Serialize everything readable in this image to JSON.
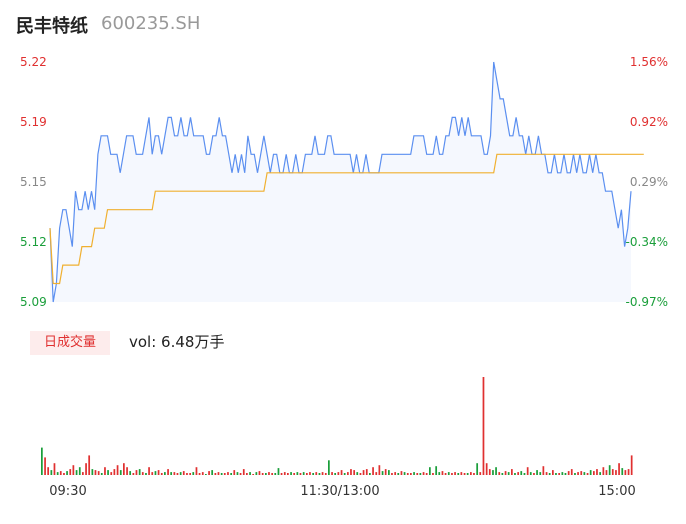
{
  "header": {
    "name": "民丰特纸",
    "code": "600235.SH"
  },
  "volume_panel": {
    "tab_label": "日成交量",
    "volume_text": "vol: 6.48万手"
  },
  "colors": {
    "up": "#e03030",
    "down": "#1a9e3a",
    "neutral": "#888888",
    "price_line": "#5b8ff0",
    "avg_line": "#f0b030",
    "area_fill": "#f5f8fe"
  },
  "chart_data": {
    "type": "line",
    "title": "",
    "x_ticks": [
      "09:30",
      "11:30/13:00",
      "15:00"
    ],
    "y_ticks_price": [
      "5.22",
      "5.19",
      "5.15",
      "5.12",
      "5.09"
    ],
    "y_ticks_pct": [
      "1.56%",
      "0.92%",
      "0.29%",
      "-0.34%",
      "-0.97%"
    ],
    "y_tick_colors": [
      "up",
      "up",
      "neutral",
      "down",
      "down"
    ],
    "ylim": [
      5.09,
      5.22
    ],
    "prev_close": 5.14,
    "series": [
      {
        "values": [
          5.13,
          5.09,
          5.1,
          5.13,
          5.14,
          5.14,
          5.13,
          5.12,
          5.15,
          5.14,
          5.14,
          5.15,
          5.14,
          5.15,
          5.14,
          5.17,
          5.18,
          5.18,
          5.18,
          5.17,
          5.17,
          5.17,
          5.16,
          5.17,
          5.18,
          5.18,
          5.18,
          5.17,
          5.17,
          5.17,
          5.18,
          5.19,
          5.17,
          5.18,
          5.18,
          5.17,
          5.18,
          5.19,
          5.19,
          5.18,
          5.18,
          5.19,
          5.18,
          5.18,
          5.19,
          5.18,
          5.18,
          5.18,
          5.18,
          5.17,
          5.17,
          5.18,
          5.18,
          5.19,
          5.18,
          5.18,
          5.17,
          5.16,
          5.17,
          5.16,
          5.17,
          5.16,
          5.18,
          5.17,
          5.17,
          5.16,
          5.17,
          5.18,
          5.17,
          5.16,
          5.17,
          5.17,
          5.16,
          5.16,
          5.17,
          5.16,
          5.16,
          5.17,
          5.16,
          5.16,
          5.17,
          5.17,
          5.17,
          5.18,
          5.17,
          5.17,
          5.17,
          5.18,
          5.18,
          5.17,
          5.17,
          5.17,
          5.17,
          5.17,
          5.17,
          5.16,
          5.17,
          5.16,
          5.16,
          5.17,
          5.16,
          5.16,
          5.16,
          5.16,
          5.17,
          5.17,
          5.17,
          5.17,
          5.17,
          5.17,
          5.17,
          5.17,
          5.17,
          5.17,
          5.18,
          5.18,
          5.18,
          5.18,
          5.17,
          5.17,
          5.17,
          5.18,
          5.17,
          5.17,
          5.18,
          5.18,
          5.19,
          5.19,
          5.18,
          5.19,
          5.18,
          5.19,
          5.18,
          5.18,
          5.18,
          5.18,
          5.17,
          5.17,
          5.18,
          5.22,
          5.21,
          5.2,
          5.2,
          5.19,
          5.18,
          5.18,
          5.19,
          5.18,
          5.18,
          5.17,
          5.18,
          5.17,
          5.17,
          5.18,
          5.17,
          5.17,
          5.16,
          5.16,
          5.17,
          5.16,
          5.16,
          5.17,
          5.16,
          5.16,
          5.17,
          5.16,
          5.17,
          5.16,
          5.16,
          5.17,
          5.16,
          5.17,
          5.16,
          5.16,
          5.15,
          5.15,
          5.15,
          5.14,
          5.13,
          5.14,
          5.12,
          5.13,
          5.15
        ],
        "color_key": "price_line"
      },
      {
        "values": [
          5.13,
          5.1,
          5.1,
          5.1,
          5.11,
          5.11,
          5.11,
          5.11,
          5.11,
          5.11,
          5.12,
          5.12,
          5.12,
          5.12,
          5.13,
          5.13,
          5.13,
          5.13,
          5.14,
          5.14,
          5.14,
          5.14,
          5.14,
          5.14,
          5.14,
          5.14,
          5.14,
          5.14,
          5.14,
          5.14,
          5.14,
          5.14,
          5.14,
          5.15,
          5.15,
          5.15,
          5.15,
          5.15,
          5.15,
          5.15,
          5.15,
          5.15,
          5.15,
          5.15,
          5.15,
          5.15,
          5.15,
          5.15,
          5.15,
          5.15,
          5.15,
          5.15,
          5.15,
          5.15,
          5.15,
          5.15,
          5.15,
          5.15,
          5.15,
          5.15,
          5.15,
          5.15,
          5.15,
          5.15,
          5.15,
          5.15,
          5.15,
          5.15,
          5.16,
          5.16,
          5.16,
          5.16,
          5.16,
          5.16,
          5.16,
          5.16,
          5.16,
          5.16,
          5.16,
          5.16,
          5.16,
          5.16,
          5.16,
          5.16,
          5.16,
          5.16,
          5.16,
          5.16,
          5.16,
          5.16,
          5.16,
          5.16,
          5.16,
          5.16,
          5.16,
          5.16,
          5.16,
          5.16,
          5.16,
          5.16,
          5.16,
          5.16,
          5.16,
          5.16,
          5.16,
          5.16,
          5.16,
          5.16,
          5.16,
          5.16,
          5.16,
          5.16,
          5.16,
          5.16,
          5.16,
          5.16,
          5.16,
          5.16,
          5.16,
          5.16,
          5.16,
          5.16,
          5.16,
          5.16,
          5.16,
          5.16,
          5.16,
          5.16,
          5.16,
          5.16,
          5.16,
          5.16,
          5.16,
          5.16,
          5.16,
          5.16,
          5.16,
          5.16,
          5.16,
          5.16,
          5.17,
          5.17,
          5.17,
          5.17,
          5.17,
          5.17,
          5.17,
          5.17,
          5.17,
          5.17,
          5.17,
          5.17,
          5.17,
          5.17,
          5.17,
          5.17,
          5.17,
          5.17,
          5.17,
          5.17,
          5.17,
          5.17,
          5.17,
          5.17,
          5.17,
          5.17,
          5.17,
          5.17,
          5.17,
          5.17,
          5.17,
          5.17,
          5.17,
          5.17,
          5.17,
          5.17,
          5.17,
          5.17,
          5.17,
          5.17,
          5.17,
          5.17,
          5.17,
          5.17,
          5.17,
          5.17,
          5.17
        ],
        "color_key": "avg_line"
      }
    ],
    "volume": {
      "values": [
        0.28,
        0.18,
        0.08,
        0.05,
        0.12,
        0.03,
        0.04,
        0.02,
        0.04,
        0.06,
        0.1,
        0.05,
        0.08,
        0.03,
        0.12,
        0.2,
        0.06,
        0.05,
        0.04,
        0.02,
        0.08,
        0.05,
        0.03,
        0.06,
        0.1,
        0.05,
        0.12,
        0.08,
        0.04,
        0.02,
        0.05,
        0.06,
        0.03,
        0.02,
        0.08,
        0.03,
        0.04,
        0.05,
        0.02,
        0.03,
        0.06,
        0.03,
        0.03,
        0.02,
        0.03,
        0.04,
        0.02,
        0.02,
        0.03,
        0.08,
        0.02,
        0.03,
        0.01,
        0.04,
        0.05,
        0.02,
        0.03,
        0.02,
        0.02,
        0.03,
        0.02,
        0.05,
        0.03,
        0.02,
        0.06,
        0.02,
        0.03,
        0.01,
        0.03,
        0.04,
        0.02,
        0.02,
        0.03,
        0.02,
        0.02,
        0.07,
        0.02,
        0.03,
        0.02,
        0.03,
        0.02,
        0.03,
        0.02,
        0.03,
        0.02,
        0.03,
        0.02,
        0.03,
        0.02,
        0.03,
        0.02,
        0.15,
        0.03,
        0.02,
        0.03,
        0.05,
        0.02,
        0.03,
        0.06,
        0.05,
        0.03,
        0.02,
        0.05,
        0.06,
        0.02,
        0.08,
        0.03,
        0.1,
        0.04,
        0.06,
        0.05,
        0.02,
        0.03,
        0.02,
        0.04,
        0.03,
        0.02,
        0.02,
        0.03,
        0.02,
        0.02,
        0.03,
        0.02,
        0.08,
        0.02,
        0.09,
        0.03,
        0.04,
        0.02,
        0.03,
        0.02,
        0.03,
        0.02,
        0.03,
        0.02,
        0.02,
        0.03,
        0.02,
        0.12,
        0.03,
        1.0,
        0.12,
        0.06,
        0.05,
        0.08,
        0.03,
        0.02,
        0.04,
        0.03,
        0.06,
        0.02,
        0.03,
        0.04,
        0.02,
        0.08,
        0.03,
        0.02,
        0.05,
        0.03,
        0.09,
        0.03,
        0.02,
        0.05,
        0.02,
        0.02,
        0.03,
        0.02,
        0.04,
        0.06,
        0.02,
        0.03,
        0.04,
        0.03,
        0.02,
        0.05,
        0.04,
        0.06,
        0.03,
        0.08,
        0.05,
        0.1,
        0.06,
        0.05,
        0.12,
        0.07,
        0.05,
        0.06,
        0.2
      ],
      "colors": [
        "down",
        "up",
        "up",
        "down",
        "up",
        "down",
        "up",
        "up",
        "down",
        "up",
        "up",
        "down",
        "down",
        "up",
        "up",
        "up",
        "down",
        "up",
        "up",
        "down",
        "up",
        "down",
        "up",
        "up",
        "up",
        "down",
        "up",
        "up",
        "down",
        "up",
        "up",
        "down",
        "up",
        "down",
        "up",
        "up",
        "down",
        "up",
        "up",
        "down",
        "up",
        "down",
        "up",
        "up",
        "down",
        "up",
        "up",
        "up",
        "down",
        "up",
        "up",
        "up",
        "down",
        "up",
        "down",
        "up",
        "up",
        "down",
        "up",
        "up",
        "down",
        "up",
        "down",
        "up",
        "up",
        "up",
        "down",
        "up",
        "down",
        "up",
        "up",
        "down",
        "up",
        "up",
        "down",
        "down",
        "up",
        "up",
        "up",
        "down",
        "up",
        "down",
        "up",
        "down",
        "up",
        "up",
        "down",
        "up",
        "down",
        "up",
        "up",
        "down",
        "up",
        "down",
        "up",
        "up",
        "down",
        "up",
        "up",
        "up",
        "down",
        "up",
        "up",
        "up",
        "down",
        "up",
        "up",
        "up",
        "down",
        "up",
        "down",
        "up",
        "up",
        "down",
        "up",
        "down",
        "up",
        "up",
        "down",
        "up",
        "down",
        "up",
        "up",
        "down",
        "up",
        "down",
        "down",
        "up",
        "up",
        "down",
        "up",
        "up",
        "down",
        "up",
        "up",
        "down",
        "up",
        "up",
        "down",
        "up",
        "up",
        "up",
        "up",
        "down",
        "down",
        "up",
        "down",
        "up",
        "down",
        "up",
        "down",
        "up",
        "down",
        "down",
        "up",
        "down",
        "up",
        "down",
        "down",
        "up",
        "up",
        "down",
        "up",
        "down",
        "up",
        "down",
        "down",
        "up",
        "up",
        "down",
        "up",
        "up",
        "down",
        "up",
        "down",
        "up",
        "up",
        "down",
        "up",
        "up",
        "down",
        "up",
        "up",
        "up",
        "down",
        "up",
        "up",
        "up",
        "neutral_up"
      ]
    }
  }
}
